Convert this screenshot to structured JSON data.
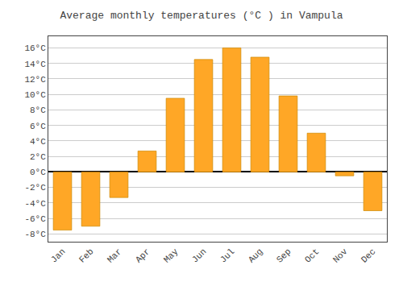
{
  "chart_data": {
    "type": "bar",
    "title": "Average monthly temperatures (°C ) in Vampula",
    "categories": [
      "Jan",
      "Feb",
      "Mar",
      "Apr",
      "May",
      "Jun",
      "Jul",
      "Aug",
      "Sep",
      "Oct",
      "Nov",
      "Dec"
    ],
    "values": [
      -7.5,
      -7.0,
      -3.3,
      2.7,
      9.5,
      14.5,
      16.0,
      14.8,
      9.8,
      5.0,
      -0.5,
      -5.0
    ],
    "color": "#FFA726",
    "ylim": [
      -9,
      17.5
    ],
    "yticks": [
      {
        "value": -8,
        "label": "-8°C"
      },
      {
        "value": -6,
        "label": "-6°C"
      },
      {
        "value": -4,
        "label": "-4°C"
      },
      {
        "value": -2,
        "label": "-2°C"
      },
      {
        "value": 0,
        "label": "0°C"
      },
      {
        "value": 2,
        "label": "2°C"
      },
      {
        "value": 4,
        "label": "4°C"
      },
      {
        "value": 6,
        "label": "6°C"
      },
      {
        "value": 8,
        "label": "8°C"
      },
      {
        "value": 10,
        "label": "10°C"
      },
      {
        "value": 12,
        "label": "12°C"
      },
      {
        "value": 14,
        "label": "14°C"
      },
      {
        "value": 16,
        "label": "16°C"
      }
    ],
    "grid": true
  }
}
